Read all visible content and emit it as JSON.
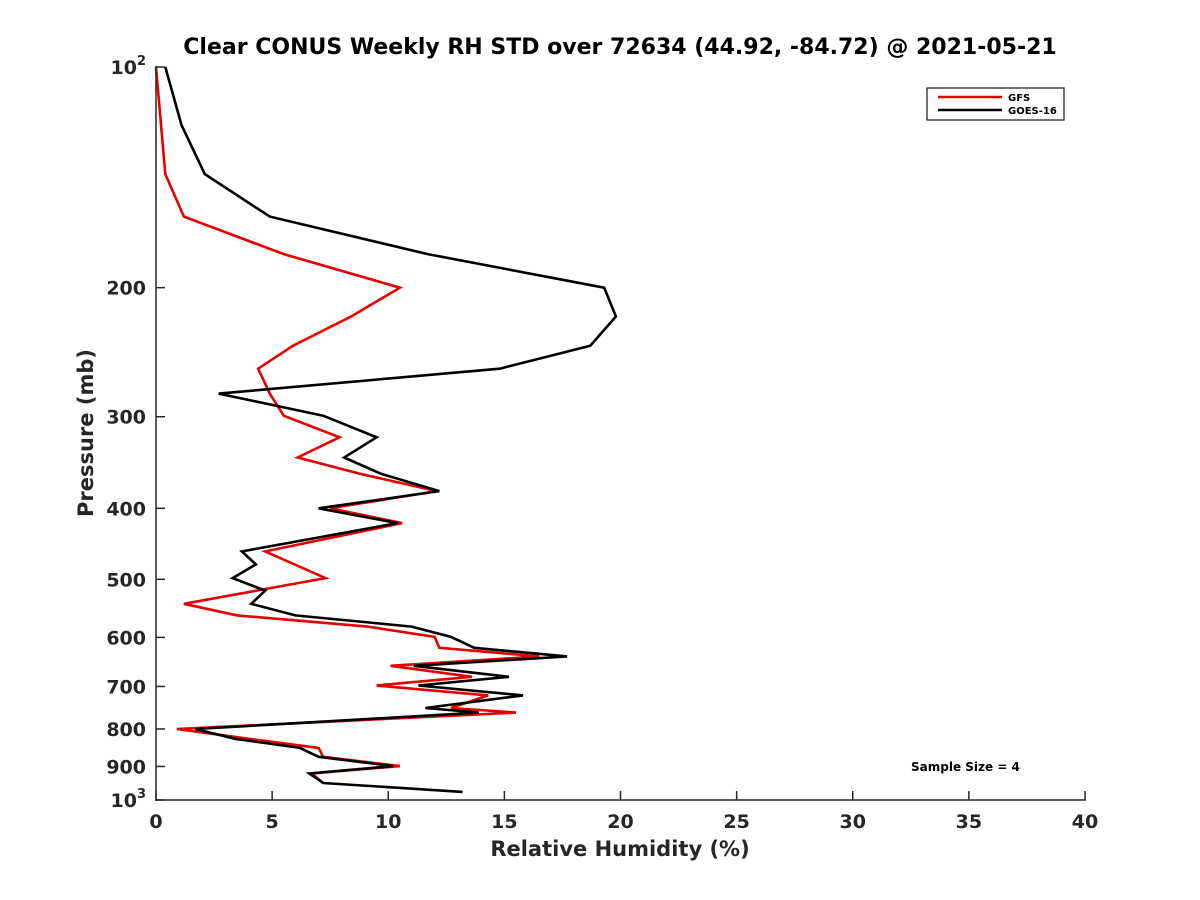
{
  "chart_data": {
    "type": "line",
    "title": "Clear CONUS Weekly RH STD over 72634 (44.92, -84.72) @ 2021-05-21",
    "xlabel": "Relative Humidity (%)",
    "ylabel": "Pressure (mb)",
    "xlim": [
      0,
      40
    ],
    "ylim": [
      100,
      1000
    ],
    "yscale": "log",
    "y_reversed": true,
    "grid": false,
    "legend_position": "top-right",
    "x_ticks": [
      0,
      5,
      10,
      15,
      20,
      25,
      30,
      35,
      40
    ],
    "x_tick_labels": [
      "0",
      "5",
      "10",
      "15",
      "20",
      "25",
      "30",
      "35",
      "40"
    ],
    "y_ticks": [
      100,
      200,
      300,
      400,
      500,
      600,
      700,
      800,
      900,
      1000
    ],
    "y_tick_labels": [
      {
        "base": "10",
        "exp": "2"
      },
      {
        "text": "200"
      },
      {
        "text": "300"
      },
      {
        "text": "400"
      },
      {
        "text": "500"
      },
      {
        "text": "600"
      },
      {
        "text": "700"
      },
      {
        "text": "800"
      },
      {
        "text": "900"
      },
      {
        "base": "10",
        "exp": "3"
      }
    ],
    "annotation": "Sample Size = 4",
    "series": [
      {
        "name": "GFS",
        "color": "#e60000",
        "points": [
          [
            0.0,
            100
          ],
          [
            0.4,
            140
          ],
          [
            1.2,
            160
          ],
          [
            5.5,
            180
          ],
          [
            10.5,
            200
          ],
          [
            8.4,
            219
          ],
          [
            5.9,
            240
          ],
          [
            4.4,
            258
          ],
          [
            4.9,
            279
          ],
          [
            5.5,
            299
          ],
          [
            7.9,
            320
          ],
          [
            6.1,
            341
          ],
          [
            8.8,
            359
          ],
          [
            12.1,
            379
          ],
          [
            7.5,
            400
          ],
          [
            10.6,
            419
          ],
          [
            4.7,
            458
          ],
          [
            7.3,
            498
          ],
          [
            1.2,
            540
          ],
          [
            3.5,
            560
          ],
          [
            9.1,
            580
          ],
          [
            12.0,
            599
          ],
          [
            12.2,
            620
          ],
          [
            16.5,
            637
          ],
          [
            10.1,
            656
          ],
          [
            13.6,
            679
          ],
          [
            9.5,
            698
          ],
          [
            14.3,
            720
          ],
          [
            12.7,
            749
          ],
          [
            15.5,
            760
          ],
          [
            0.9,
            800
          ],
          [
            4.0,
            825
          ],
          [
            7.0,
            849
          ],
          [
            7.2,
            873
          ],
          [
            10.5,
            899
          ],
          [
            6.7,
            920
          ],
          [
            7.2,
            948
          ]
        ]
      },
      {
        "name": "GOES-16",
        "color": "#000000",
        "points": [
          [
            0.4,
            100
          ],
          [
            1.1,
            120
          ],
          [
            2.1,
            140
          ],
          [
            4.9,
            160
          ],
          [
            11.7,
            180
          ],
          [
            19.3,
            200
          ],
          [
            19.8,
            219
          ],
          [
            18.7,
            240
          ],
          [
            14.8,
            258
          ],
          [
            2.7,
            279
          ],
          [
            7.2,
            299
          ],
          [
            9.5,
            320
          ],
          [
            8.1,
            341
          ],
          [
            9.7,
            359
          ],
          [
            12.2,
            379
          ],
          [
            7.0,
            400
          ],
          [
            10.4,
            419
          ],
          [
            3.7,
            458
          ],
          [
            4.3,
            477
          ],
          [
            3.3,
            498
          ],
          [
            4.7,
            518
          ],
          [
            4.1,
            540
          ],
          [
            6.0,
            560
          ],
          [
            11.0,
            580
          ],
          [
            12.7,
            599
          ],
          [
            13.7,
            620
          ],
          [
            17.7,
            637
          ],
          [
            11.1,
            656
          ],
          [
            15.2,
            679
          ],
          [
            11.3,
            698
          ],
          [
            15.8,
            720
          ],
          [
            11.6,
            749
          ],
          [
            13.9,
            760
          ],
          [
            1.7,
            800
          ],
          [
            3.4,
            825
          ],
          [
            6.2,
            849
          ],
          [
            7.0,
            873
          ],
          [
            10.2,
            899
          ],
          [
            6.6,
            920
          ],
          [
            7.2,
            948
          ],
          [
            13.2,
            975
          ]
        ]
      }
    ]
  }
}
